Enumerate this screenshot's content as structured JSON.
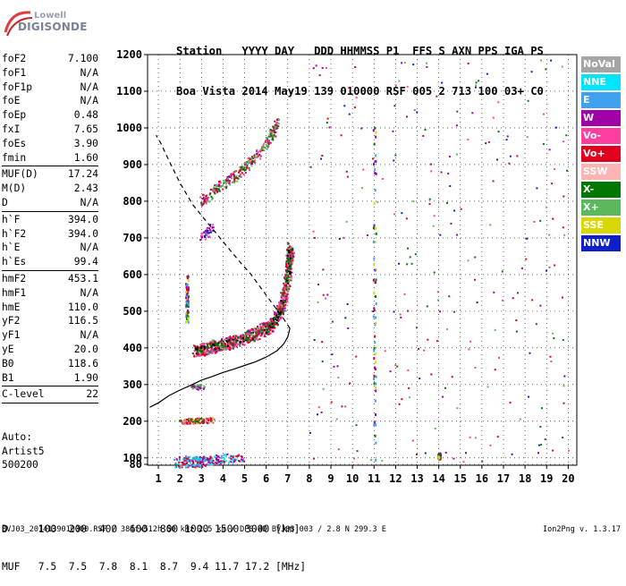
{
  "logo": {
    "line1": "Lowell",
    "line2": "DIGISONDE"
  },
  "header": {
    "line1": "Station   YYYY DAY   DDD HHMMSS P1  FFS S AXN PPS IGA PS",
    "line2": "Boa Vista 2014 May19 139 010000 RSF 005 2 713 100 03+ C0"
  },
  "params": [
    {
      "k": "foF2",
      "v": "7.100"
    },
    {
      "k": "foF1",
      "v": "N/A"
    },
    {
      "k": "foF1p",
      "v": "N/A"
    },
    {
      "k": "foE",
      "v": "N/A"
    },
    {
      "k": "foEp",
      "v": "0.48"
    },
    {
      "k": "fxI",
      "v": "7.65"
    },
    {
      "k": "foEs",
      "v": "3.90"
    },
    {
      "k": "fmin",
      "v": "1.60"
    },
    {
      "sep": true
    },
    {
      "k": "MUF(D)",
      "v": "17.24"
    },
    {
      "k": "M(D)",
      "v": "2.43"
    },
    {
      "k": "D",
      "v": "N/A"
    },
    {
      "sep": true
    },
    {
      "k": "h`F",
      "v": "394.0"
    },
    {
      "k": "h`F2",
      "v": "394.0"
    },
    {
      "k": "h`E",
      "v": "N/A"
    },
    {
      "k": "h`Es",
      "v": "99.4"
    },
    {
      "sep": true
    },
    {
      "k": "hmF2",
      "v": "453.1"
    },
    {
      "k": "hmF1",
      "v": "N/A"
    },
    {
      "k": "hmE",
      "v": "110.0"
    },
    {
      "k": "yF2",
      "v": "116.5"
    },
    {
      "k": "yF1",
      "v": "N/A"
    },
    {
      "k": "yE",
      "v": "20.0"
    },
    {
      "k": "B0",
      "v": "118.6"
    },
    {
      "k": "B1",
      "v": "1.90"
    },
    {
      "sep": true
    },
    {
      "k": "C-level",
      "v": "22"
    },
    {
      "sep": true
    }
  ],
  "auto": {
    "line1": "Auto:",
    "line2": "Artist5",
    "line3": "500200"
  },
  "legend": [
    {
      "label": "NoVal",
      "color": "#a5a5a5"
    },
    {
      "label": "NNE",
      "color": "#00e5ff"
    },
    {
      "label": "E",
      "color": "#3fa0f0"
    },
    {
      "label": "W",
      "color": "#a000a8"
    },
    {
      "label": "Vo-",
      "color": "#ff3fa0"
    },
    {
      "label": "Vo+",
      "color": "#e0001e"
    },
    {
      "label": "SSW",
      "color": "#ffb4b4"
    },
    {
      "label": "X-",
      "color": "#007800"
    },
    {
      "label": "X+",
      "color": "#5cb85c"
    },
    {
      "label": "SSE",
      "color": "#d8d800"
    },
    {
      "label": "NNW",
      "color": "#1020c8"
    }
  ],
  "muf": {
    "line1": "D     100  200  400  600  800 1000 1500 3000 [km]",
    "line2": "MUF   7.5  7.5  7.8  8.1  8.7  9.4 11.7 17.2 [MHz]"
  },
  "footer": "BVJ03_2014139010000.RSF / 384fx512h 50 kHz 2.5 km / DPS-4D BVJ03 003 / 2.8 N 299.3 E",
  "version": "Ion2Png v. 1.3.17",
  "chart_data": {
    "type": "scatter",
    "x_ticks": [
      "1",
      "2",
      "3",
      "4",
      "5",
      "6",
      "7",
      "8",
      "9",
      "10",
      "11",
      "12",
      "13",
      "14",
      "15",
      "16",
      "17",
      "18",
      "19",
      "20"
    ],
    "y_ticks": [
      "80",
      "100",
      "200",
      "300",
      "400",
      "500",
      "600",
      "700",
      "800",
      "900",
      "1000",
      "1100",
      "1200"
    ],
    "xlim": [
      1,
      20
    ],
    "ylim": [
      80,
      1200
    ],
    "grid": true,
    "legend_position": "right",
    "profile_curve": [
      [
        0.6,
        238
      ],
      [
        1.0,
        250
      ],
      [
        1.5,
        270
      ],
      [
        2,
        285
      ],
      [
        2.5,
        298
      ],
      [
        3,
        312
      ],
      [
        3.5,
        322
      ],
      [
        4,
        333
      ],
      [
        4.5,
        342
      ],
      [
        5,
        352
      ],
      [
        5.5,
        362
      ],
      [
        6,
        375
      ],
      [
        6.5,
        392
      ],
      [
        6.8,
        410
      ],
      [
        7.0,
        430
      ],
      [
        7.1,
        453
      ]
    ],
    "dashed_curve": [
      [
        7.1,
        453
      ],
      [
        6.8,
        480
      ],
      [
        6.3,
        520
      ],
      [
        5.8,
        560
      ],
      [
        5.3,
        600
      ],
      [
        4.7,
        640
      ],
      [
        4.0,
        690
      ],
      [
        3.3,
        740
      ],
      [
        2.6,
        790
      ],
      [
        2.0,
        850
      ],
      [
        1.5,
        910
      ],
      [
        1.1,
        960
      ],
      [
        0.9,
        980
      ]
    ],
    "f2_trace": [
      [
        2.7,
        395
      ],
      [
        3,
        398
      ],
      [
        3.5,
        405
      ],
      [
        4,
        412
      ],
      [
        4.5,
        420
      ],
      [
        5,
        430
      ],
      [
        5.5,
        440
      ],
      [
        6,
        455
      ],
      [
        6.3,
        470
      ],
      [
        6.6,
        500
      ],
      [
        6.8,
        540
      ],
      [
        6.95,
        590
      ],
      [
        7.05,
        640
      ],
      [
        7.1,
        680
      ]
    ],
    "f2_upper_trace": [
      [
        3,
        800
      ],
      [
        3.5,
        830
      ],
      [
        4,
        850
      ],
      [
        4.5,
        870
      ],
      [
        5,
        895
      ],
      [
        5.5,
        925
      ],
      [
        6,
        960
      ],
      [
        6.3,
        990
      ],
      [
        6.5,
        1020
      ]
    ],
    "f2_small_trace": [
      [
        3,
        700
      ],
      [
        3.2,
        715
      ],
      [
        3.5,
        730
      ]
    ],
    "es_traces": [
      [
        [
          2,
          100
        ],
        [
          2.5,
          102
        ],
        [
          3,
          101
        ]
      ],
      [
        [
          2,
          200
        ],
        [
          2.5,
          202
        ],
        [
          3,
          203
        ],
        [
          3.5,
          205
        ]
      ],
      [
        [
          2.5,
          295
        ],
        [
          3,
          296
        ]
      ],
      [
        [
          1.8,
          87
        ],
        [
          2.5,
          88
        ],
        [
          3,
          90
        ],
        [
          3.5,
          95
        ],
        [
          4,
          100
        ],
        [
          5,
          102
        ]
      ]
    ],
    "noise_columns": [
      [
        2.3,
        [
          470,
          600
        ]
      ],
      [
        11,
        [
          95,
          1030
        ]
      ],
      [
        14,
        [
          100,
          115
        ]
      ]
    ]
  }
}
